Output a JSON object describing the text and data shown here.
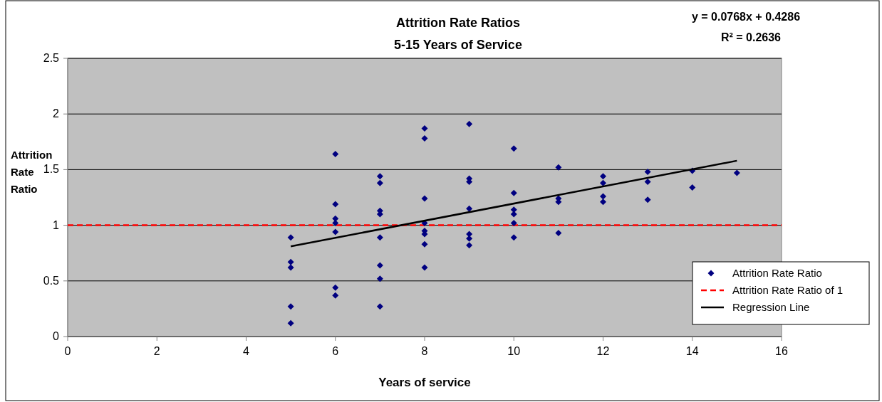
{
  "chart_data": {
    "type": "scatter",
    "title": "Attrition Rate Ratios",
    "subtitle": "5-15 Years of Service",
    "xlabel": "Years of service",
    "ylabel": "Attrition Rate Ratio",
    "annotations": [
      "y = 0.0768x + 0.4286",
      "R² = 0.2636"
    ],
    "series": [
      {
        "name": "Attrition Rate Ratio",
        "color": "#000080",
        "marker": "diamond",
        "x": [
          5,
          5,
          5,
          5,
          5,
          6,
          6,
          6,
          6,
          6,
          6,
          6,
          7,
          7,
          7,
          7,
          7,
          7,
          7,
          7,
          8,
          8,
          8,
          8,
          8,
          8,
          8,
          8,
          9,
          9,
          9,
          9,
          9,
          9,
          9,
          10,
          10,
          10,
          10,
          10,
          10,
          11,
          11,
          11,
          11,
          12,
          12,
          12,
          12,
          13,
          13,
          13,
          14,
          14,
          15
        ],
        "values": [
          0.89,
          0.67,
          0.62,
          0.27,
          0.12,
          1.64,
          1.19,
          1.06,
          1.02,
          0.94,
          0.44,
          0.37,
          1.44,
          1.38,
          1.13,
          1.1,
          0.89,
          0.64,
          0.52,
          0.27,
          1.87,
          1.78,
          1.24,
          1.02,
          0.95,
          0.92,
          0.83,
          0.62,
          1.91,
          1.42,
          1.39,
          1.15,
          0.92,
          0.88,
          0.82,
          1.69,
          1.29,
          1.14,
          1.1,
          1.02,
          0.89,
          1.52,
          1.24,
          1.21,
          0.93,
          1.44,
          1.38,
          1.26,
          1.21,
          1.48,
          1.39,
          1.23,
          1.49,
          1.34,
          1.47
        ]
      },
      {
        "name": "Regression Line",
        "type": "line",
        "color": "#000000",
        "line_style": "solid",
        "marker": "none",
        "x": [
          5,
          15
        ],
        "values": [
          0.81,
          1.58
        ]
      }
    ],
    "ref_lines": [
      {
        "axis": "y",
        "value": 1,
        "label": "Attrition Rate Ratio of 1",
        "color": "#ff0000",
        "line_style": "dashed"
      }
    ],
    "xlim": [
      0,
      16
    ],
    "xticks": [
      0,
      2,
      4,
      6,
      8,
      10,
      12,
      14,
      16
    ],
    "ylim": [
      0,
      2.5
    ],
    "yticks": [
      0,
      0.5,
      1,
      1.5,
      2,
      2.5
    ],
    "grid": "y",
    "legend": "bottom right"
  }
}
